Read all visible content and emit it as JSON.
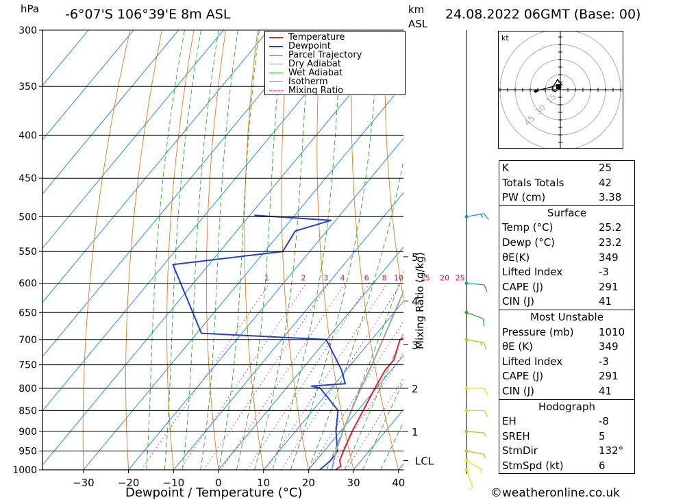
{
  "header": {
    "pressure_unit": "hPa",
    "location": "-6°07'S  106°39'E  8m  ASL",
    "km_label": "km",
    "asl_label": "ASL",
    "datetime": "24.08.2022  06GMT  (Base: 00)"
  },
  "footer": {
    "credit": "©weatheronline.co.uk"
  },
  "chart_data": {
    "type": "line",
    "xlabel": "Dewpoint / Temperature (°C)",
    "ylabel_right": "Mixing Ratio (g/kg)",
    "pressure_levels": [
      300,
      350,
      400,
      450,
      500,
      550,
      600,
      650,
      700,
      750,
      800,
      850,
      900,
      950,
      1000
    ],
    "x_ticks": [
      -30,
      -20,
      -10,
      0,
      10,
      20,
      30,
      40
    ],
    "xlim": [
      -40,
      40
    ],
    "ylim": [
      1000,
      300
    ],
    "km_ticks": [
      {
        "label": "1",
        "p": 900
      },
      {
        "label": "2",
        "p": 800
      },
      {
        "label": "3",
        "p": 710
      },
      {
        "label": "4",
        "p": 630
      },
      {
        "label": "5",
        "p": 558
      },
      {
        "label": "LCL",
        "p": 975
      }
    ],
    "mixing_ratio_labels": [
      "1",
      "2",
      "3",
      "4",
      "6",
      "8",
      "10",
      "15",
      "20",
      "25"
    ],
    "legend": [
      "Temperature",
      "Dewpoint",
      "Parcel Trajectory",
      "Dry Adiabat",
      "Wet Adiabat",
      "Isotherm",
      "Mixing Ratio"
    ],
    "colors": {
      "temperature": "#e8202a",
      "dewpoint": "#1f3fd6",
      "parcel": "#a8a8a8",
      "dry_adiabat": "#e07a1a",
      "wet_adiabat": "#22aa22",
      "isotherm": "#1e90e0",
      "mixing_ratio": "#c0168a"
    },
    "series": [
      {
        "name": "Temperature",
        "points": [
          [
            1000,
            26
          ],
          [
            990,
            26.5
          ],
          [
            975,
            25.2
          ],
          [
            950,
            24.3
          ],
          [
            900,
            22.6
          ],
          [
            850,
            21.2
          ],
          [
            800,
            19.7
          ],
          [
            760,
            18.6
          ],
          [
            740,
            18.7
          ],
          [
            700,
            16.3
          ],
          [
            690,
            17.6
          ],
          [
            650,
            15.8
          ],
          [
            600,
            13.7
          ],
          [
            550,
            10.6
          ],
          [
            520,
            8.2
          ],
          [
            500,
            7.2
          ],
          [
            495,
            7.3
          ]
        ]
      },
      {
        "name": "Dewpoint",
        "points": [
          [
            1000,
            22.5
          ],
          [
            975,
            23.2
          ],
          [
            950,
            23
          ],
          [
            900,
            19
          ],
          [
            850,
            15.6
          ],
          [
            800,
            7.6
          ],
          [
            795,
            5.2
          ],
          [
            790,
            12.3
          ],
          [
            760,
            8.8
          ],
          [
            700,
            -0.1
          ],
          [
            688,
            -29
          ],
          [
            570,
            -48
          ],
          [
            550,
            -26
          ],
          [
            520,
            -27
          ],
          [
            505,
            -21
          ],
          [
            498,
            -39
          ]
        ]
      },
      {
        "name": "Parcel Trajectory",
        "points": [
          [
            1000,
            25.2
          ],
          [
            975,
            23.9
          ],
          [
            950,
            22.7
          ],
          [
            900,
            20.5
          ],
          [
            850,
            18.6
          ],
          [
            800,
            16.6
          ],
          [
            750,
            14.7
          ],
          [
            700,
            12.5
          ],
          [
            650,
            10.1
          ],
          [
            600,
            7.5
          ],
          [
            550,
            4.3
          ],
          [
            500,
            0.5
          ],
          [
            450,
            -4.1
          ],
          [
            400,
            -10
          ],
          [
            350,
            -17.5
          ],
          [
            320,
            -22.5
          ]
        ]
      }
    ]
  },
  "hodograph": {
    "unit_label": "kt",
    "ring_labels": [
      "15",
      "30",
      "45"
    ]
  },
  "winds": [
    {
      "p": 1000,
      "dir": 160,
      "spd": 6,
      "color": "#e6e600"
    },
    {
      "p": 975,
      "dir": 120,
      "spd": 5,
      "color": "#e6e600"
    },
    {
      "p": 950,
      "dir": 100,
      "spd": 5,
      "color": "#9ad81a"
    },
    {
      "p": 900,
      "dir": 95,
      "spd": 6,
      "color": "#9ad81a"
    },
    {
      "p": 850,
      "dir": 90,
      "spd": 10,
      "color": "#cfe01a"
    },
    {
      "p": 800,
      "dir": 90,
      "spd": 10,
      "color": "#e6e600"
    },
    {
      "p": 700,
      "dir": 100,
      "spd": 15,
      "color": "#9ad81a"
    },
    {
      "p": 650,
      "dir": 110,
      "spd": 10,
      "color": "#22aa22"
    },
    {
      "p": 600,
      "dir": 95,
      "spd": 10,
      "color": "#1aa88a"
    },
    {
      "p": 500,
      "dir": 80,
      "spd": 15,
      "color": "#1e90e0"
    }
  ],
  "indices": [
    {
      "label": "K",
      "value": "25"
    },
    {
      "label": "Totals Totals",
      "value": "42"
    },
    {
      "label": "PW (cm)",
      "value": "3.38"
    }
  ],
  "surface": {
    "title": "Surface",
    "rows": [
      {
        "label": "Temp (°C)",
        "value": "25.2"
      },
      {
        "label": "Dewp (°C)",
        "value": "23.2"
      },
      {
        "label": "θE(K)",
        "value": "349"
      },
      {
        "label": "Lifted Index",
        "value": "-3"
      },
      {
        "label": "CAPE (J)",
        "value": "291"
      },
      {
        "label": "CIN (J)",
        "value": "41"
      }
    ]
  },
  "most_unstable": {
    "title": "Most Unstable",
    "rows": [
      {
        "label": "Pressure (mb)",
        "value": "1010"
      },
      {
        "label": "θE (K)",
        "value": "349"
      },
      {
        "label": "Lifted Index",
        "value": "-3"
      },
      {
        "label": "CAPE (J)",
        "value": "291"
      },
      {
        "label": "CIN (J)",
        "value": "41"
      }
    ]
  },
  "hodo_params": {
    "title": "Hodograph",
    "rows": [
      {
        "label": "EH",
        "value": "-8"
      },
      {
        "label": "SREH",
        "value": "5"
      },
      {
        "label": "StmDir",
        "value": "132°"
      },
      {
        "label": "StmSpd (kt)",
        "value": "6"
      }
    ]
  }
}
